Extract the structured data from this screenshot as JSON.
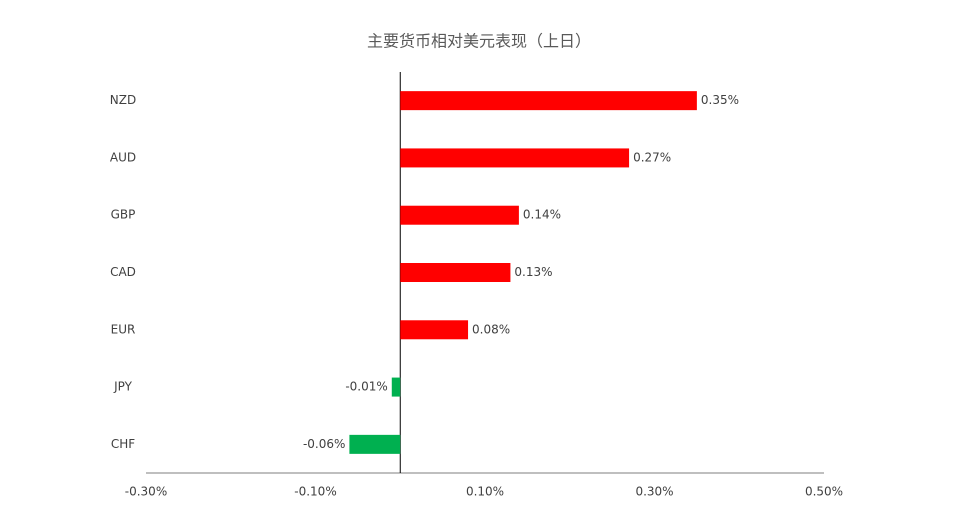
{
  "chart_data": {
    "type": "bar",
    "orientation": "horizontal",
    "title": "主要货币相对美元表现（上日）",
    "categories": [
      "NZD",
      "AUD",
      "GBP",
      "CAD",
      "EUR",
      "JPY",
      "CHF"
    ],
    "values": [
      0.35,
      0.27,
      0.14,
      0.13,
      0.08,
      -0.01,
      -0.06
    ],
    "value_labels": [
      "0.35%",
      "0.27%",
      "0.14%",
      "0.13%",
      "0.08%",
      "-0.01%",
      "-0.06%"
    ],
    "colors": [
      "#ff0000",
      "#ff0000",
      "#ff0000",
      "#ff0000",
      "#ff0000",
      "#00b050",
      "#00b050"
    ],
    "xlim": [
      -0.3,
      0.5
    ],
    "xticks": [
      {
        "value": -0.3,
        "label": "-0.30%"
      },
      {
        "value": -0.1,
        "label": "-0.10%"
      },
      {
        "value": 0.1,
        "label": "0.10%"
      },
      {
        "value": 0.3,
        "label": "0.30%"
      },
      {
        "value": 0.5,
        "label": "0.50%"
      }
    ],
    "grid": false
  }
}
